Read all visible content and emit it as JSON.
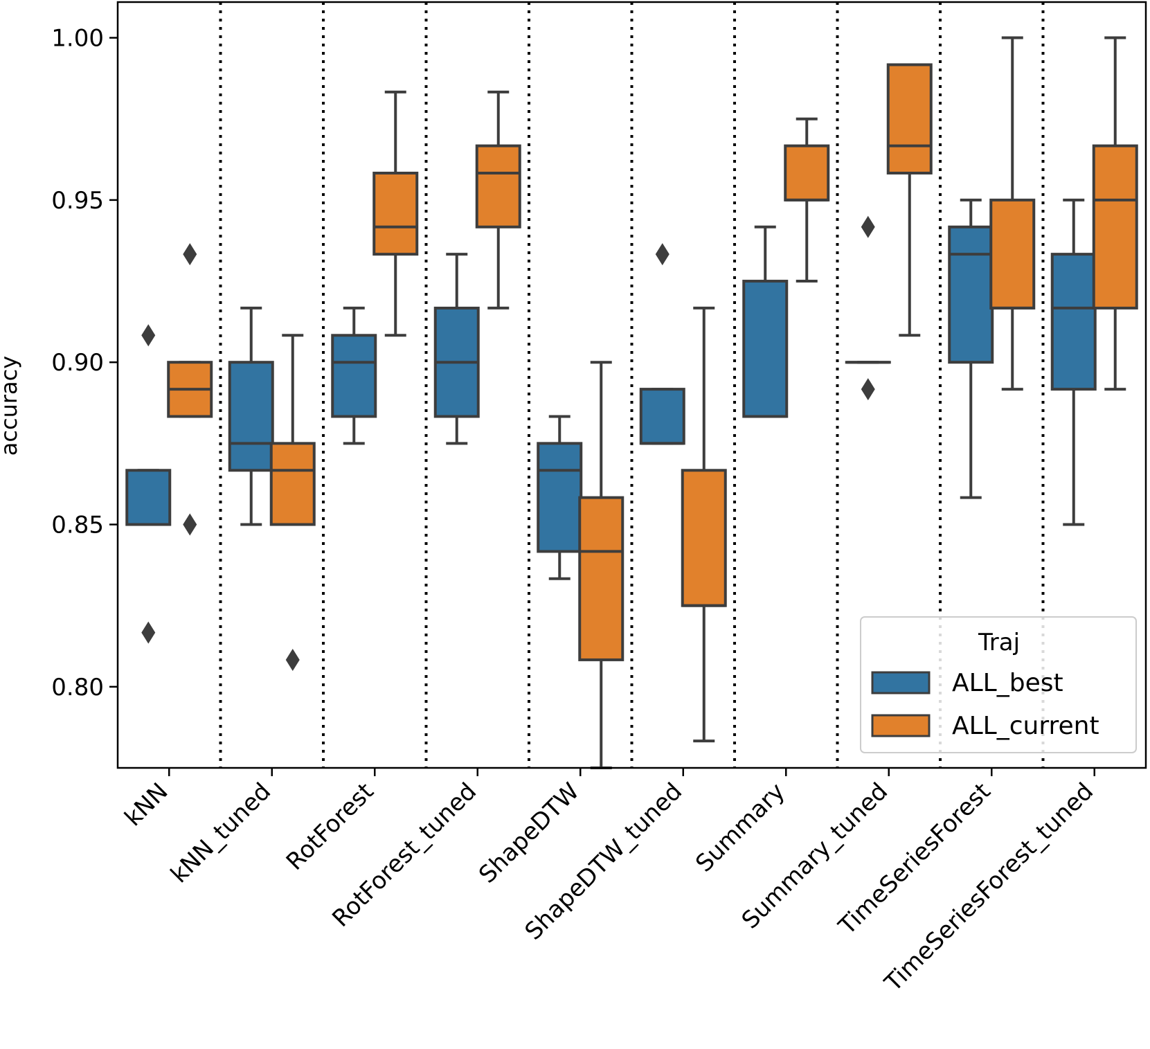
{
  "chart_data": {
    "type": "box",
    "title": "",
    "xlabel": "",
    "ylabel": "accuracy",
    "ylim": [
      0.775,
      1.011
    ],
    "yticks": [
      {
        "value": 0.8,
        "label": "0.80"
      },
      {
        "value": 0.85,
        "label": "0.85"
      },
      {
        "value": 0.9,
        "label": "0.90"
      },
      {
        "value": 0.95,
        "label": "0.95"
      },
      {
        "value": 1.0,
        "label": "1.00"
      }
    ],
    "grid": false,
    "group_separators": "dotted",
    "categories": [
      "kNN",
      "kNN_tuned",
      "RotForest",
      "RotForest_tuned",
      "ShapeDTW",
      "ShapeDTW_tuned",
      "Summary",
      "Summary_tuned",
      "TimeSeriesForest",
      "TimeSeriesForest_tuned"
    ],
    "legend": {
      "title": "Traj",
      "placement": "lower-right"
    },
    "series": [
      {
        "name": "ALL_best",
        "color": "#3274a1",
        "boxes": [
          {
            "whislo": 0.85,
            "q1": 0.85,
            "med": 0.85,
            "q3": 0.8667,
            "whishi": 0.8667,
            "fliers": [
              0.9083,
              0.8167
            ]
          },
          {
            "whislo": 0.85,
            "q1": 0.8667,
            "med": 0.875,
            "q3": 0.9,
            "whishi": 0.9167,
            "fliers": []
          },
          {
            "whislo": 0.875,
            "q1": 0.8833,
            "med": 0.9,
            "q3": 0.9083,
            "whishi": 0.9167,
            "fliers": []
          },
          {
            "whislo": 0.875,
            "q1": 0.8833,
            "med": 0.9,
            "q3": 0.9167,
            "whishi": 0.9333,
            "fliers": []
          },
          {
            "whislo": 0.8333,
            "q1": 0.8417,
            "med": 0.8667,
            "q3": 0.875,
            "whishi": 0.8833,
            "fliers": []
          },
          {
            "whislo": 0.875,
            "q1": 0.875,
            "med": 0.875,
            "q3": 0.8917,
            "whishi": 0.8917,
            "fliers": [
              0.9333
            ]
          },
          {
            "whislo": 0.8833,
            "q1": 0.8833,
            "med": 0.8833,
            "q3": 0.925,
            "whishi": 0.9417,
            "fliers": []
          },
          {
            "whislo": 0.9,
            "q1": 0.9,
            "med": 0.9,
            "q3": 0.9,
            "whishi": 0.9,
            "fliers": [
              0.9417,
              0.8917
            ]
          },
          {
            "whislo": 0.8583,
            "q1": 0.9,
            "med": 0.9333,
            "q3": 0.9417,
            "whishi": 0.95,
            "fliers": []
          },
          {
            "whislo": 0.85,
            "q1": 0.8917,
            "med": 0.9167,
            "q3": 0.9333,
            "whishi": 0.95,
            "fliers": []
          }
        ]
      },
      {
        "name": "ALL_current",
        "color": "#e1812c",
        "boxes": [
          {
            "whislo": 0.8833,
            "q1": 0.8833,
            "med": 0.8917,
            "q3": 0.9,
            "whishi": 0.9,
            "fliers": [
              0.9333,
              0.85
            ]
          },
          {
            "whislo": 0.85,
            "q1": 0.85,
            "med": 0.8667,
            "q3": 0.875,
            "whishi": 0.9083,
            "fliers": [
              0.8083
            ]
          },
          {
            "whislo": 0.9083,
            "q1": 0.9333,
            "med": 0.9417,
            "q3": 0.9583,
            "whishi": 0.9833,
            "fliers": []
          },
          {
            "whislo": 0.9167,
            "q1": 0.9417,
            "med": 0.9583,
            "q3": 0.9667,
            "whishi": 0.9833,
            "fliers": []
          },
          {
            "whislo": 0.775,
            "q1": 0.8083,
            "med": 0.8417,
            "q3": 0.8583,
            "whishi": 0.9,
            "fliers": []
          },
          {
            "whislo": 0.7833,
            "q1": 0.825,
            "med": 0.825,
            "q3": 0.8667,
            "whishi": 0.9167,
            "fliers": []
          },
          {
            "whislo": 0.925,
            "q1": 0.95,
            "med": 0.95,
            "q3": 0.9667,
            "whishi": 0.975,
            "fliers": []
          },
          {
            "whislo": 0.9083,
            "q1": 0.9583,
            "med": 0.9667,
            "q3": 0.9917,
            "whishi": 0.9917,
            "fliers": []
          },
          {
            "whislo": 0.8917,
            "q1": 0.9167,
            "med": 0.9167,
            "q3": 0.95,
            "whishi": 1.0,
            "fliers": []
          },
          {
            "whislo": 0.8917,
            "q1": 0.9167,
            "med": 0.95,
            "q3": 0.9667,
            "whishi": 1.0,
            "fliers": []
          }
        ]
      }
    ]
  }
}
